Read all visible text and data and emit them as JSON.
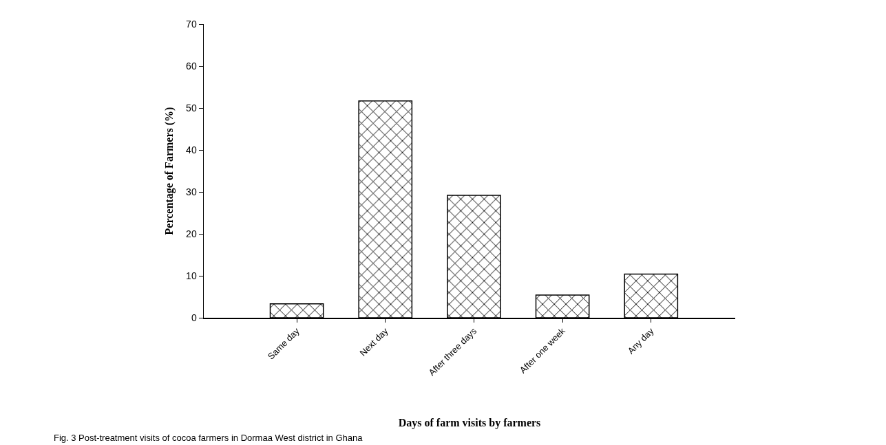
{
  "chart_data": {
    "type": "bar",
    "categories": [
      "Same day",
      "Next day",
      "After three days",
      "After one week",
      "Any day"
    ],
    "values": [
      3.3,
      51.7,
      29.2,
      5.4,
      10.4
    ],
    "color": "#000000",
    "xlabel": "Days of farm visits by farmers",
    "ylabel": "Percentage of Farmers (%)",
    "ylim": [
      0,
      70
    ],
    "yticks": [
      0,
      10,
      20,
      30,
      40,
      50,
      60,
      70
    ],
    "grid": false,
    "annotations": [
      "Fig. 3 Post-treatment visits of cocoa farmers in Dormaa West district in Ghana"
    ]
  }
}
